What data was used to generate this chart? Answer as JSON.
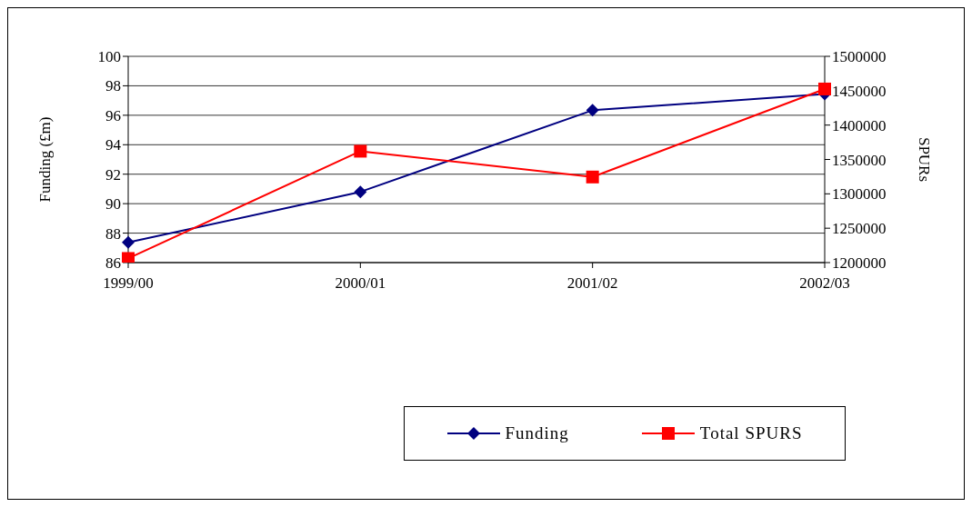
{
  "chart_data": {
    "type": "line",
    "categories": [
      "1999/00",
      "2000/01",
      "2001/02",
      "2002/03"
    ],
    "series": [
      {
        "name": "Funding",
        "color": "#000080",
        "values": [
          87.37,
          90.8,
          96.34,
          97.44
        ],
        "marker": "diamond"
      },
      {
        "name": "Total SPURS",
        "color": "#ff0000",
        "values": [
          1206000,
          1362000,
          1324500,
          1452500
        ],
        "axis": "y2",
        "marker": "square"
      }
    ],
    "ylabel": "Funding (£m)",
    "y2label": "SPURs",
    "ylim": [
      86,
      100
    ],
    "yticks": [
      86,
      88,
      90,
      92,
      94,
      96,
      98,
      100
    ],
    "y2lim": [
      1200000,
      1500000
    ],
    "y2ticks": [
      1200000,
      1250000,
      1300000,
      1350000,
      1400000,
      1450000,
      1500000
    ],
    "grid": "y",
    "legend": "bottom",
    "line_style": "solid"
  }
}
